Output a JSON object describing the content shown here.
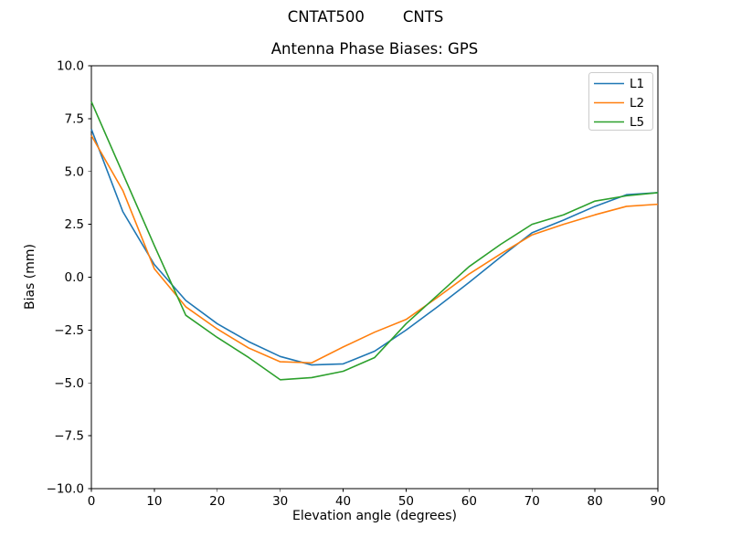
{
  "figure": {
    "suptitle": "CNTAT500        CNTS"
  },
  "chart_data": {
    "type": "line",
    "title": "Antenna Phase Biases: GPS",
    "xlabel": "Elevation angle (degrees)",
    "ylabel": "Bias (mm)",
    "xlim": [
      0,
      90
    ],
    "ylim": [
      -10,
      10
    ],
    "grid": false,
    "background": "#ffffff",
    "spine_color": "#000000",
    "legend_position": "upper right",
    "x_ticks": [
      0,
      10,
      20,
      30,
      40,
      50,
      60,
      70,
      80,
      90
    ],
    "x_tick_labels": [
      "0",
      "10",
      "20",
      "30",
      "40",
      "50",
      "60",
      "70",
      "80",
      "90"
    ],
    "y_ticks": [
      10,
      7.5,
      5,
      2.5,
      0,
      -2.5,
      -5,
      -7.5,
      -10
    ],
    "y_tick_labels": [
      "10.0",
      "7.5",
      "5.0",
      "2.5",
      "0.0",
      "−2.5",
      "−5.0",
      "−7.5",
      "−10.0"
    ],
    "x": [
      0,
      5,
      10,
      15,
      20,
      25,
      30,
      35,
      40,
      45,
      50,
      55,
      60,
      65,
      70,
      75,
      80,
      85,
      90
    ],
    "series": [
      {
        "name": "L1",
        "color": "#1f77b4",
        "values": [
          7.0,
          3.1,
          0.6,
          -1.1,
          -2.2,
          -3.05,
          -3.75,
          -4.15,
          -4.1,
          -3.5,
          -2.5,
          -1.4,
          -0.25,
          0.95,
          2.1,
          2.7,
          3.35,
          3.9,
          4.0
        ]
      },
      {
        "name": "L2",
        "color": "#ff7f0e",
        "values": [
          6.7,
          4.1,
          0.4,
          -1.4,
          -2.45,
          -3.35,
          -4.0,
          -4.05,
          -3.3,
          -2.6,
          -2.0,
          -0.95,
          0.15,
          1.1,
          2.0,
          2.5,
          2.95,
          3.35,
          3.45
        ]
      },
      {
        "name": "L5",
        "color": "#2ca02c",
        "values": [
          8.3,
          4.9,
          1.5,
          -1.8,
          -2.85,
          -3.8,
          -4.85,
          -4.75,
          -4.45,
          -3.8,
          -2.2,
          -0.85,
          0.5,
          1.55,
          2.5,
          2.95,
          3.6,
          3.85,
          4.0
        ]
      }
    ]
  }
}
